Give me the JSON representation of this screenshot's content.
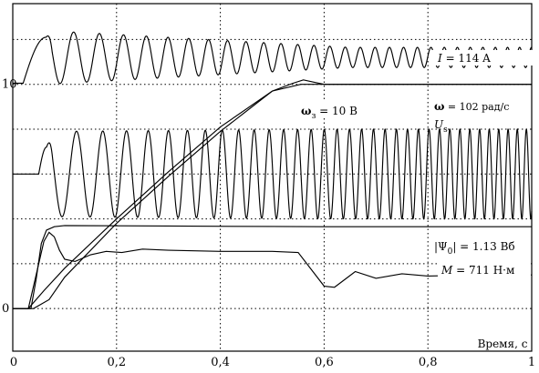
{
  "chart_data": {
    "type": "line",
    "xlabel": "Время, с",
    "xlim": [
      0,
      1
    ],
    "x_ticks": [
      {
        "value": 0.2,
        "label": "0,2"
      },
      {
        "value": 0.4,
        "label": "0,4"
      },
      {
        "value": 0.6,
        "label": "0,6"
      },
      {
        "value": 0.8,
        "label": "0,8"
      },
      {
        "value": 1.0,
        "label": "1"
      }
    ],
    "x_origin_label": "0",
    "ylim": [
      -1.9,
      13.6
    ],
    "y_ticks": [
      {
        "value": 0,
        "label": "0"
      },
      {
        "value": 10,
        "label": "10"
      }
    ],
    "grid": true,
    "y_grid": [
      0,
      2,
      4,
      6,
      8,
      10,
      12
    ],
    "annotations": [
      {
        "key": "current",
        "prefix": "I",
        "text": " = 114  A"
      },
      {
        "key": "omega_ref",
        "prefix": "ω",
        "sub": "з",
        "text": " = 10 В"
      },
      {
        "key": "omega",
        "prefix": "ω",
        "text": " = 102 рад/с"
      },
      {
        "key": "voltage",
        "prefix": "U",
        "sub": "s",
        "text": ""
      },
      {
        "key": "flux",
        "prefix": "|Ψ",
        "sub": "0",
        "text": "| = 1.13 Вб"
      },
      {
        "key": "torque",
        "prefix": "M",
        "text": "  =  711 Н·м"
      }
    ],
    "series": [
      {
        "key": "current",
        "kind": "chirp",
        "baseline": 11.2,
        "t_start": 0.02,
        "pre_level": 10.05,
        "peak_t": 0.064,
        "peak_v": 12.1,
        "amp_start": 1.2,
        "amp_end": 0.45,
        "freq_start": 18,
        "freq_end": 44
      },
      {
        "key": "voltage",
        "kind": "chirp",
        "baseline": 6.0,
        "t_start": 0.05,
        "pre_level": 6.0,
        "peak_t": 0.065,
        "peak_v": 7.2,
        "amp_start": 1.9,
        "amp_end": 2.0,
        "freq_start": 16,
        "freq_end": 58
      },
      {
        "key": "omega",
        "kind": "line",
        "x": [
          0,
          0.04,
          0.07,
          0.1,
          0.2,
          0.3,
          0.4,
          0.5,
          0.54,
          0.56,
          0.58,
          0.6,
          1.0
        ],
        "y": [
          0,
          0,
          0.4,
          1.4,
          3.8,
          5.9,
          7.9,
          9.7,
          10.05,
          10.2,
          10.1,
          10.0,
          10.0
        ]
      },
      {
        "key": "omega_ref",
        "kind": "line",
        "x": [
          0,
          0.03,
          0.06,
          0.1,
          0.2,
          0.3,
          0.4,
          0.5,
          0.555,
          0.58,
          1.0
        ],
        "y": [
          0,
          0,
          0.8,
          1.8,
          4.0,
          6.1,
          8.1,
          9.7,
          10.0,
          10.0,
          10.0
        ]
      },
      {
        "key": "flux",
        "kind": "line",
        "x": [
          0,
          0.035,
          0.045,
          0.055,
          0.065,
          0.08,
          0.1,
          0.3,
          0.5,
          0.6,
          1.0
        ],
        "y": [
          0,
          0,
          1.3,
          2.9,
          3.5,
          3.65,
          3.7,
          3.68,
          3.66,
          3.65,
          3.65
        ]
      },
      {
        "key": "torque",
        "kind": "line",
        "x": [
          0,
          0.03,
          0.045,
          0.06,
          0.07,
          0.08,
          0.09,
          0.1,
          0.12,
          0.15,
          0.18,
          0.21,
          0.25,
          0.3,
          0.4,
          0.5,
          0.55,
          0.6,
          0.62,
          0.66,
          0.7,
          0.75,
          0.8,
          0.9,
          1.0
        ],
        "y": [
          0,
          0,
          1.5,
          3.0,
          3.4,
          3.2,
          2.6,
          2.2,
          2.1,
          2.4,
          2.55,
          2.5,
          2.65,
          2.6,
          2.55,
          2.55,
          2.5,
          1.0,
          0.95,
          1.65,
          1.35,
          1.55,
          1.45,
          1.5,
          1.5
        ]
      }
    ]
  }
}
